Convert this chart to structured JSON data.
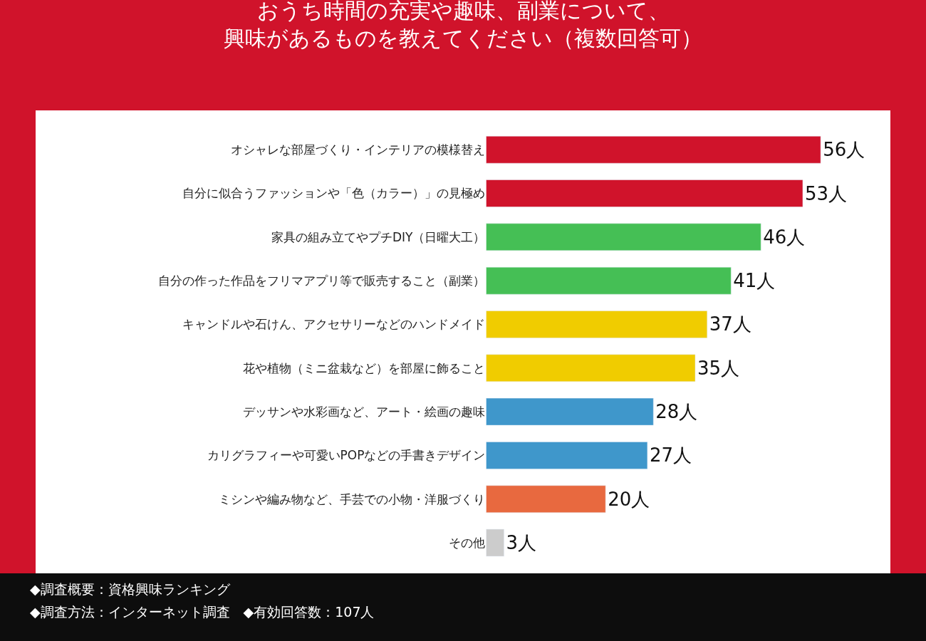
{
  "chart_data": {
    "type": "bar",
    "orientation": "horizontal",
    "title": "おうち時間の充実や趣味、副業について、興味があるものを教えてください（複数回答可）",
    "categories": [
      "オシャレな部屋づくり・インテリアの模様替え",
      "自分に似合うファッションや「色（カラー）」の見極め",
      "家具の組み立てやプチDIY（日曜大工）",
      "自分の作った作品をフリマアプリ等で販売すること（副業）",
      "キャンドルや石けん、アクセサリーなどのハンドメイド",
      "花や植物（ミニ盆栽など）を部屋に飾ること",
      "デッサンや水彩画など、アート・絵画の趣味",
      "カリグラフィーや可愛いPOPなどの手書きデザイン",
      "ミシンや編み物など、手芸での小物・洋服づくり",
      "その他"
    ],
    "values": [
      56,
      53,
      46,
      41,
      37,
      35,
      28,
      27,
      20,
      3
    ],
    "colors": [
      "#d0132b",
      "#d0132b",
      "#45bf55",
      "#45bf55",
      "#f0cc00",
      "#f0cc00",
      "#3f97cb",
      "#3f97cb",
      "#e8693f",
      "#cccccc"
    ],
    "value_labels": [
      "56人",
      "53人",
      "46人",
      "41人",
      "37人",
      "35人",
      "28人",
      "27人",
      "20人",
      "3人"
    ],
    "annotations": [
      "◆調査概要：資格興味ランキング",
      "◆調査方法：インターネット調査　◆有効回答数：107人"
    ],
    "legend": false
  }
}
